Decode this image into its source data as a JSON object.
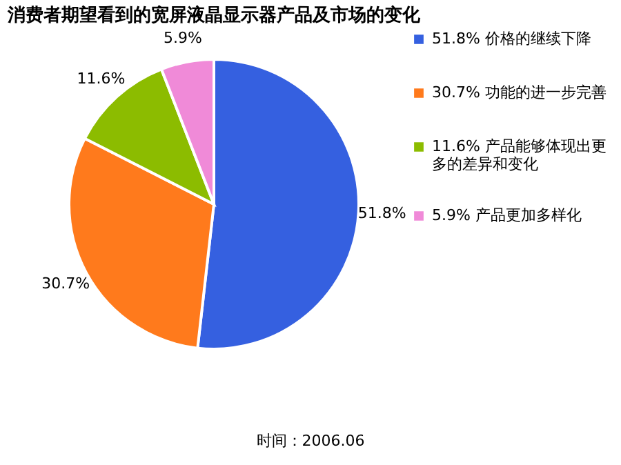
{
  "chart_data": {
    "type": "pie",
    "title": "消费者期望看到的宽屏液晶显示器产品及市场的变化",
    "categories": [
      "价格的继续下降",
      "功能的进一步完善",
      "产品能够体现出更多的差异和变化",
      "产品更加多样化"
    ],
    "values": [
      51.8,
      30.7,
      11.6,
      5.9
    ],
    "value_labels": [
      "51.8%",
      "30.7%",
      "11.6%",
      "5.9%"
    ],
    "colors": [
      "#3560e0",
      "#ff7a1c",
      "#8cbc00",
      "#f08ad8"
    ],
    "legend": "right",
    "annotations": [
      "时间：2006.06"
    ]
  }
}
